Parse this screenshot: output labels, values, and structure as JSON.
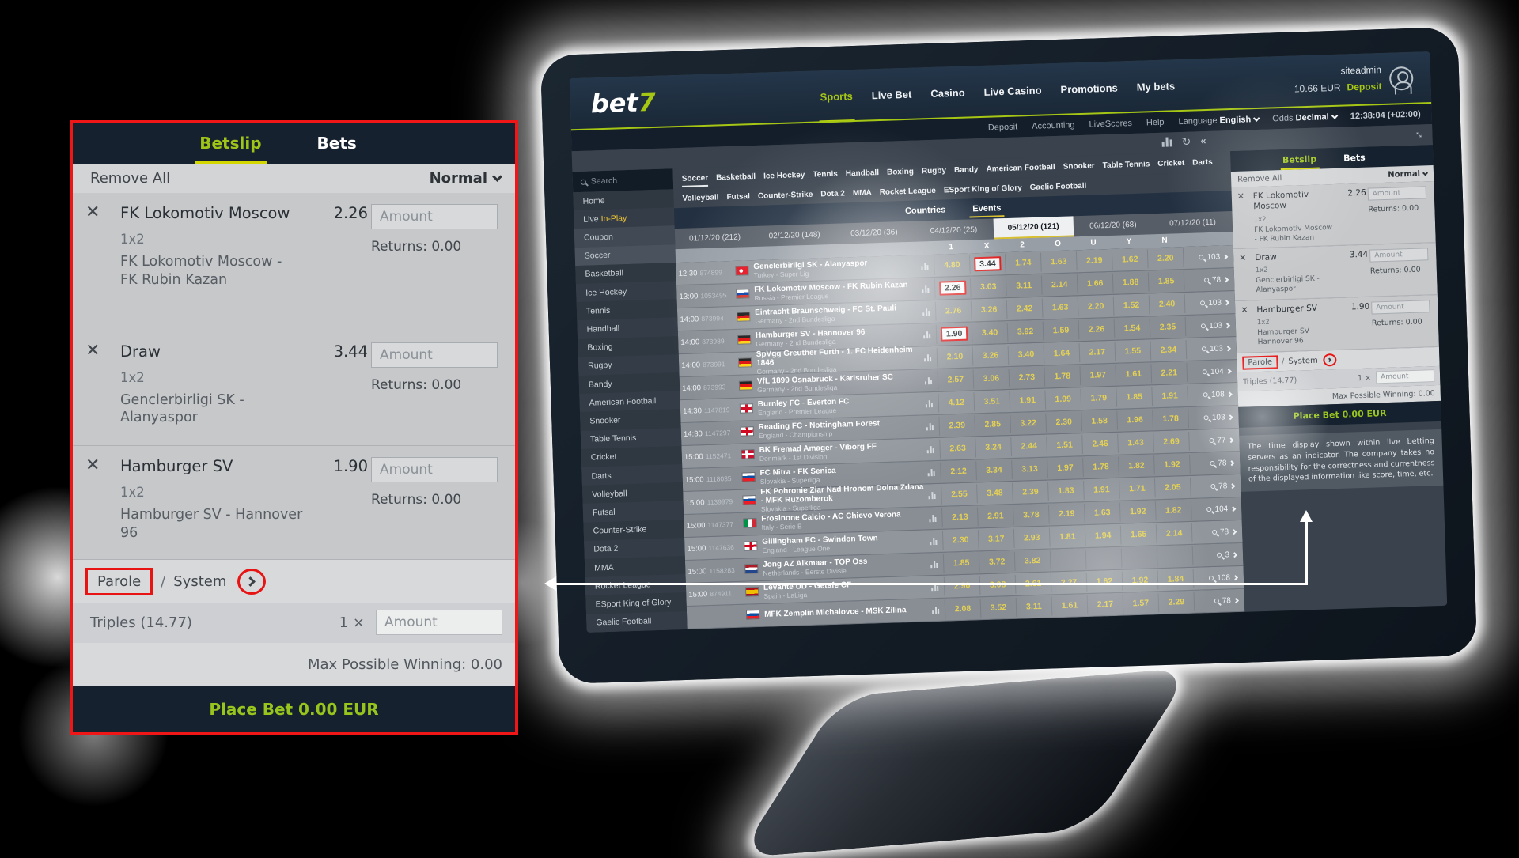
{
  "betslip": {
    "tabs": {
      "betslip": "Betslip",
      "bets": "Bets"
    },
    "remove_all": "Remove All",
    "mode": "Normal",
    "bets": [
      {
        "title": "FK Lokomotiv Moscow",
        "odds": "2.26",
        "market": "1x2",
        "match": "FK Lokomotiv Moscow - FK Rubin Kazan",
        "amount_placeholder": "Amount",
        "returns": "Returns: 0.00"
      },
      {
        "title": "Draw",
        "odds": "3.44",
        "market": "1x2",
        "match": "Genclerbirligi SK - Alanyaspor",
        "amount_placeholder": "Amount",
        "returns": "Returns: 0.00"
      },
      {
        "title": "Hamburger SV",
        "odds": "1.90",
        "market": "1x2",
        "match": "Hamburger SV - Hannover 96",
        "amount_placeholder": "Amount",
        "returns": "Returns: 0.00"
      }
    ],
    "parole": "Parole",
    "separator": "/",
    "system": "System",
    "triples": "Triples (14.77)",
    "multiplier": "1 ×",
    "amount_placeholder": "Amount",
    "max_winning": "Max Possible Winning: 0.00",
    "place_bet": "Place Bet 0.00 EUR"
  },
  "site": {
    "logo": {
      "bet": "bet",
      "seven": "7"
    },
    "nav": [
      "Sports",
      "Live Bet",
      "Casino",
      "Live Casino",
      "Promotions",
      "My bets"
    ],
    "user": {
      "name": "siteadmin",
      "balance": "10.66 EUR",
      "deposit": "Deposit"
    },
    "subnav": [
      "Deposit",
      "Accounting",
      "LiveScores",
      "Help"
    ],
    "language_label": "Language",
    "language_value": "English",
    "odds_label": "Odds",
    "odds_value": "Decimal",
    "clock": "12:38:04 (+02:00)",
    "search_placeholder": "Search",
    "sidebar": [
      {
        "text": "Home"
      },
      {
        "prefix": "Live ",
        "accent": "In-Play"
      },
      {
        "text": "Coupon",
        "state": "hl"
      },
      {
        "text": "Soccer",
        "state": "sel"
      },
      {
        "text": "Basketball"
      },
      {
        "text": "Ice Hockey"
      },
      {
        "text": "Tennis"
      },
      {
        "text": "Handball"
      },
      {
        "text": "Boxing"
      },
      {
        "text": "Rugby"
      },
      {
        "text": "Bandy"
      },
      {
        "text": "American Football"
      },
      {
        "text": "Snooker"
      },
      {
        "text": "Table Tennis"
      },
      {
        "text": "Cricket"
      },
      {
        "text": "Darts"
      },
      {
        "text": "Volleyball"
      },
      {
        "text": "Futsal"
      },
      {
        "text": "Counter-Strike"
      },
      {
        "text": "Dota 2"
      },
      {
        "text": "MMA"
      },
      {
        "text": "Rocket League"
      },
      {
        "text": "ESport King of Glory"
      },
      {
        "text": "Gaelic Football"
      }
    ],
    "sport_tabs_row1": [
      "Soccer",
      "Basketball",
      "Ice Hockey",
      "Tennis",
      "Handball",
      "Boxing",
      "Rugby",
      "Bandy",
      "American Football",
      "Snooker",
      "Table Tennis",
      "Cricket",
      "Darts"
    ],
    "sport_tabs_row2": [
      "Volleyball",
      "Futsal",
      "Counter-Strike",
      "Dota 2",
      "MMA",
      "Rocket League",
      "ESport King of Glory",
      "Gaelic Football"
    ],
    "view_tabs": [
      {
        "label": "Countries",
        "active": false
      },
      {
        "label": "Events",
        "active": true
      }
    ],
    "date_tabs": [
      {
        "label": "01/12/20 (212)",
        "active": false
      },
      {
        "label": "02/12/20 (148)",
        "active": false
      },
      {
        "label": "03/12/20 (36)",
        "active": false
      },
      {
        "label": "04/12/20 (25)",
        "active": false
      },
      {
        "label": "05/12/20 (121)",
        "active": true
      },
      {
        "label": "06/12/20 (68)",
        "active": false
      },
      {
        "label": "07/12/20 (11)",
        "active": false
      }
    ],
    "odds_columns": [
      "1",
      "X",
      "2",
      "O",
      "U",
      "Y",
      "N"
    ],
    "events": [
      {
        "time": "12:30",
        "id": "874899",
        "flag": "turkey",
        "match": "Genclerbirligi SK - Alanyaspor",
        "league": "Turkey - Super Lig",
        "odds": [
          "4.80",
          "3.44",
          "1.74",
          "1.63",
          "2.19",
          "1.62",
          "2.20"
        ],
        "selected": 1,
        "count": "103"
      },
      {
        "time": "13:00",
        "id": "1053495",
        "flag": "russia",
        "match": "FK Lokomotiv Moscow - FK Rubin Kazan",
        "league": "Russia - Premier League",
        "odds": [
          "2.26",
          "3.03",
          "3.11",
          "2.14",
          "1.66",
          "1.88",
          "1.85"
        ],
        "selected": 0,
        "count": "78"
      },
      {
        "time": "14:00",
        "id": "873994",
        "flag": "germany",
        "match": "Eintracht Braunschweig - FC St. Pauli",
        "league": "Germany - 2nd Bundesliga",
        "odds": [
          "2.76",
          "3.26",
          "2.42",
          "1.63",
          "2.20",
          "1.52",
          "2.40"
        ],
        "selected": -1,
        "count": "103"
      },
      {
        "time": "14:00",
        "id": "873989",
        "flag": "germany",
        "match": "Hamburger SV - Hannover 96",
        "league": "Germany - 2nd Bundesliga",
        "odds": [
          "1.90",
          "3.40",
          "3.92",
          "1.59",
          "2.26",
          "1.54",
          "2.35"
        ],
        "selected": 0,
        "count": "103"
      },
      {
        "time": "14:00",
        "id": "873991",
        "flag": "germany",
        "match": "SpVgg Greuther Furth - 1. FC Heidenheim 1846",
        "league": "Germany - 2nd Bundesliga",
        "odds": [
          "2.10",
          "3.26",
          "3.40",
          "1.64",
          "2.17",
          "1.55",
          "2.34"
        ],
        "selected": -1,
        "count": "103"
      },
      {
        "time": "14:00",
        "id": "873993",
        "flag": "germany",
        "match": "VfL 1899 Osnabruck - Karlsruher SC",
        "league": "Germany - 2nd Bundesliga",
        "odds": [
          "2.57",
          "3.06",
          "2.73",
          "1.78",
          "1.97",
          "1.61",
          "2.21"
        ],
        "selected": -1,
        "count": "104"
      },
      {
        "time": "14:30",
        "id": "1147819",
        "flag": "england",
        "match": "Burnley FC - Everton FC",
        "league": "England - Premier League",
        "odds": [
          "4.12",
          "3.51",
          "1.91",
          "1.99",
          "1.79",
          "1.85",
          "1.91"
        ],
        "selected": -1,
        "count": "108"
      },
      {
        "time": "14:30",
        "id": "1147297",
        "flag": "england",
        "match": "Reading FC - Nottingham Forest",
        "league": "England - Championship",
        "odds": [
          "2.39",
          "2.85",
          "3.22",
          "2.30",
          "1.58",
          "1.96",
          "1.78"
        ],
        "selected": -1,
        "count": "103"
      },
      {
        "time": "15:00",
        "id": "1152471",
        "flag": "denmark",
        "match": "BK Fremad Amager - Viborg FF",
        "league": "Denmark - 1st Division",
        "odds": [
          "2.63",
          "3.24",
          "2.44",
          "1.51",
          "2.46",
          "1.43",
          "2.69"
        ],
        "selected": -1,
        "count": "77"
      },
      {
        "time": "15:00",
        "id": "1118035",
        "flag": "slovakia",
        "match": "FC Nitra - FK Senica",
        "league": "Slovakia - Superliga",
        "odds": [
          "2.12",
          "3.34",
          "3.13",
          "1.97",
          "1.78",
          "1.82",
          "1.92"
        ],
        "selected": -1,
        "count": "78"
      },
      {
        "time": "15:00",
        "id": "1139979",
        "flag": "slovakia",
        "match": "FK Pohronie Ziar Nad Hronom Dolna Zdana - MFK Ruzomberok",
        "league": "Slovakia - Superliga",
        "odds": [
          "2.55",
          "3.48",
          "2.39",
          "1.83",
          "1.91",
          "1.71",
          "2.05"
        ],
        "selected": -1,
        "count": "78"
      },
      {
        "time": "15:00",
        "id": "1147377",
        "flag": "italy",
        "match": "Frosinone Calcio - AC Chievo Verona",
        "league": "Italy - Serie B",
        "odds": [
          "2.13",
          "2.91",
          "3.78",
          "2.19",
          "1.63",
          "1.92",
          "1.82"
        ],
        "selected": -1,
        "count": "104"
      },
      {
        "time": "15:00",
        "id": "1147636",
        "flag": "england",
        "match": "Gillingham FC - Swindon Town",
        "league": "England - League One",
        "odds": [
          "2.30",
          "3.17",
          "2.93",
          "1.81",
          "1.94",
          "1.65",
          "2.14"
        ],
        "selected": -1,
        "count": "78"
      },
      {
        "time": "15:00",
        "id": "1158283",
        "flag": "netherlands",
        "match": "Jong AZ Alkmaar - TOP Oss",
        "league": "Netherlands - Eerste Divisie",
        "odds": [
          "1.85",
          "3.72",
          "3.82",
          "",
          "",
          "",
          ""
        ],
        "selected": -1,
        "count": "3"
      },
      {
        "time": "15:00",
        "id": "874911",
        "flag": "spain",
        "match": "Levante UD - Getafe CF",
        "league": "Spain - LaLiga",
        "odds": [
          "2.90",
          "3.08",
          "2.61",
          "2.27",
          "1.62",
          "1.92",
          "1.84"
        ],
        "selected": -1,
        "count": "108"
      },
      {
        "time": "",
        "id": "",
        "flag": "slovakia",
        "match": "MFK Zemplin Michalovce - MSK Zilina",
        "league": "",
        "odds": [
          "2.08",
          "3.52",
          "3.11",
          "1.61",
          "2.17",
          "1.57",
          "2.29"
        ],
        "selected": -1,
        "count": "78"
      }
    ],
    "disclaimer": "The time display shown within live betting servers as an indicator. The company takes no responsibility for the correctness and currentness of the displayed information like score, time, etc."
  },
  "icons": {
    "refresh": "↻",
    "collapse": "«",
    "expand": "↔",
    "close": "✕"
  },
  "colors": {
    "accent_green": "#a6c614",
    "tab_underline": "#d4d600",
    "odds_yellow": "#e3d054",
    "annotation_red": "#ee1616",
    "navy": "#15212e",
    "events_underline": "#d8bf2d"
  }
}
